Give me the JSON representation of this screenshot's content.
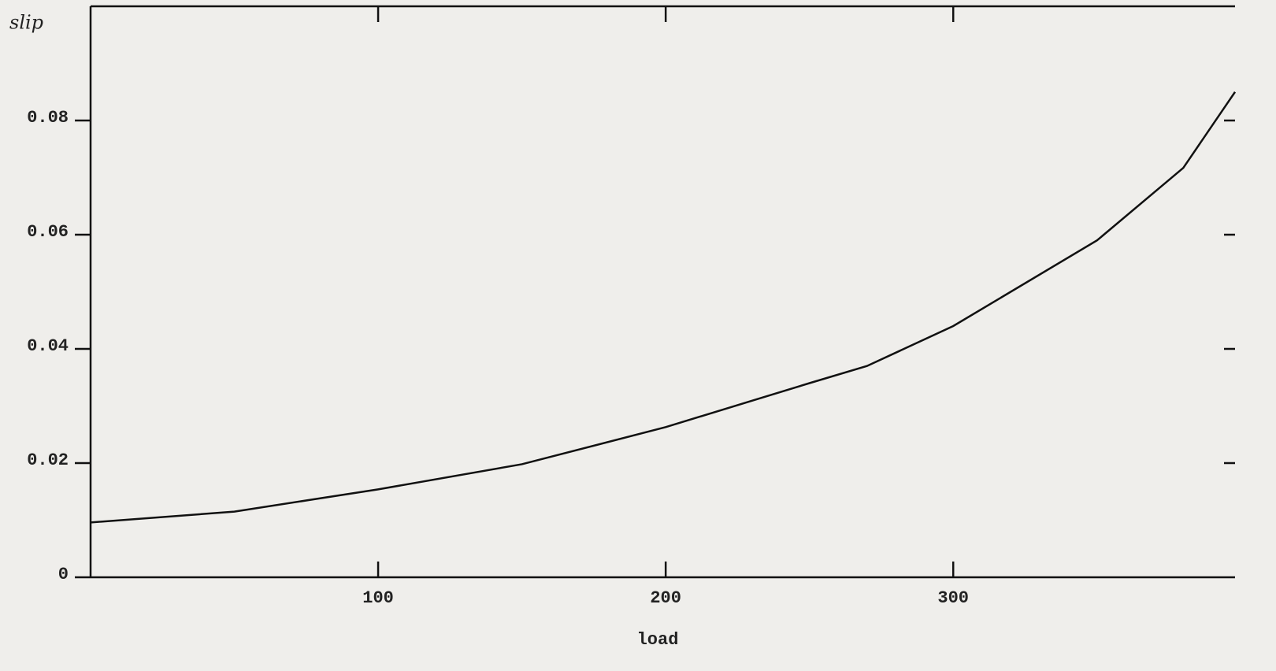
{
  "chart_data": {
    "type": "line",
    "xlabel": "load",
    "ylabel": "slip",
    "x": [
      0,
      50,
      100,
      150,
      200,
      250,
      270,
      300,
      350,
      380,
      398
    ],
    "series": [
      {
        "name": "slip",
        "color": "#111111",
        "values": [
          0.0096,
          0.0115,
          0.0154,
          0.0198,
          0.0263,
          0.034,
          0.037,
          0.044,
          0.059,
          0.0717,
          0.085
        ]
      }
    ],
    "xlim": [
      0,
      398
    ],
    "ylim": [
      0,
      0.1
    ],
    "xticks": [
      100,
      200,
      300
    ],
    "yticks": [
      0,
      0.02,
      0.04,
      0.06,
      0.08
    ]
  }
}
